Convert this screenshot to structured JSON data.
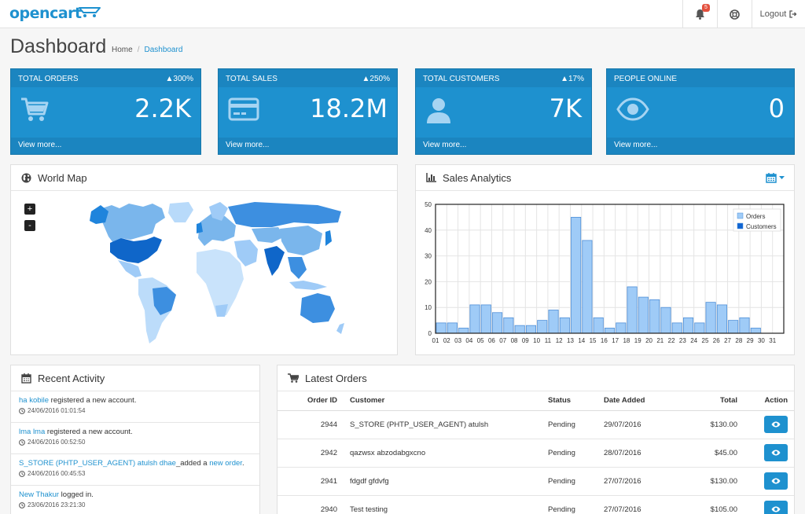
{
  "header": {
    "logo": "opencart",
    "notification_count": "5",
    "logout_label": "Logout"
  },
  "page": {
    "title": "Dashboard",
    "breadcrumb": [
      "Home",
      "Dashboard"
    ]
  },
  "tiles": [
    {
      "title": "TOTAL ORDERS",
      "change": "300%",
      "value": "2.2K",
      "link": "View more...",
      "icon": "shopping-cart-icon"
    },
    {
      "title": "TOTAL SALES",
      "change": "250%",
      "value": "18.2M",
      "link": "View more...",
      "icon": "credit-card-icon"
    },
    {
      "title": "TOTAL CUSTOMERS",
      "change": "17%",
      "value": "7K",
      "link": "View more...",
      "icon": "user-icon"
    },
    {
      "title": "PEOPLE ONLINE",
      "change": "",
      "value": "0",
      "link": "View more...",
      "icon": "eye-icon"
    }
  ],
  "world_map": {
    "title": "World Map",
    "zoom_in": "+",
    "zoom_out": "-"
  },
  "sales": {
    "title": "Sales Analytics"
  },
  "chart_data": {
    "type": "bar",
    "categories": [
      "01",
      "02",
      "03",
      "04",
      "05",
      "06",
      "07",
      "08",
      "09",
      "10",
      "11",
      "12",
      "13",
      "14",
      "15",
      "16",
      "17",
      "18",
      "19",
      "20",
      "21",
      "22",
      "23",
      "24",
      "25",
      "26",
      "27",
      "28",
      "29",
      "30",
      "31"
    ],
    "series": [
      {
        "name": "Orders",
        "values": [
          4,
          4,
          2,
          11,
          11,
          8,
          6,
          3,
          3,
          5,
          9,
          6,
          45,
          36,
          6,
          2,
          4,
          18,
          14,
          13,
          10,
          4,
          6,
          4,
          12,
          11,
          5,
          6,
          2,
          0,
          0
        ]
      },
      {
        "name": "Customers",
        "values": [
          0,
          0,
          0,
          0,
          0,
          0,
          0,
          0,
          0,
          0,
          0,
          0,
          0,
          0,
          0,
          0,
          0,
          0,
          0,
          0,
          0,
          0,
          0,
          0,
          0,
          0,
          0,
          0,
          0,
          0,
          0
        ]
      }
    ],
    "ylim": [
      0,
      50
    ],
    "yticks": [
      0,
      10,
      20,
      30,
      40,
      50
    ],
    "grid": true,
    "legend": "top-right",
    "colors": {
      "Orders": "#9fcbf7",
      "Customers": "#1065d2"
    }
  },
  "activity": {
    "title": "Recent Activity",
    "items": [
      {
        "link": "ha kobile",
        "text": " registered a new account.",
        "link2": "",
        "text2": "",
        "date": "24/06/2016 01:01:54"
      },
      {
        "link": "lma lma",
        "text": " registered a new account.",
        "link2": "",
        "text2": "",
        "date": "24/06/2016 00:52:50"
      },
      {
        "link": "S_STORE (PHTP_USER_AGENT) atulsh dhae",
        "text": "_added a ",
        "link2": "new order",
        "text2": ".",
        "date": "24/06/2016 00:45:53"
      },
      {
        "link": "New Thakur",
        "text": " logged in.",
        "link2": "",
        "text2": "",
        "date": "23/06/2016 23:21:30"
      }
    ]
  },
  "orders": {
    "title": "Latest Orders",
    "columns": [
      "Order ID",
      "Customer",
      "Status",
      "Date Added",
      "Total",
      "Action"
    ],
    "rows": [
      {
        "id": "2944",
        "customer": "S_STORE (PHTP_USER_AGENT) atulsh",
        "status": "Pending",
        "date": "29/07/2016",
        "total": "$130.00"
      },
      {
        "id": "2942",
        "customer": "qazwsx abzodabgxcno",
        "status": "Pending",
        "date": "28/07/2016",
        "total": "$45.00"
      },
      {
        "id": "2941",
        "customer": "fdgdf gfdvfg",
        "status": "Pending",
        "date": "27/07/2016",
        "total": "$130.00"
      },
      {
        "id": "2940",
        "customer": "Test testing",
        "status": "Pending",
        "date": "27/07/2016",
        "total": "$105.00"
      }
    ]
  }
}
